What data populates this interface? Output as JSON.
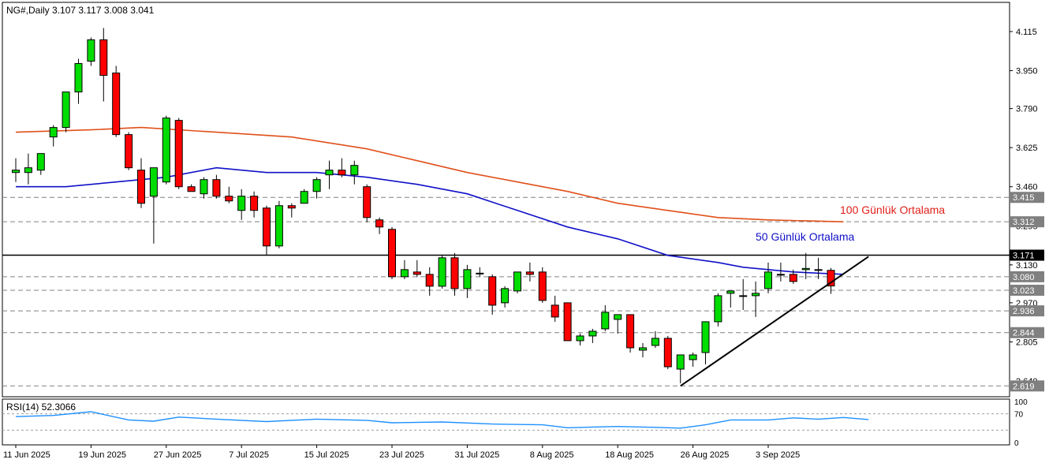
{
  "header": {
    "symbol_line": "NG#,Daily  3.107 3.117 3.008 3.041"
  },
  "rsi_header": "RSI(14) 52.3066",
  "annotations": {
    "ma100_label": "100 Günlük Ortalama",
    "ma50_label": "50 Günlük Ortalama"
  },
  "colors": {
    "background": "#ffffff",
    "bull": "#00dd00",
    "bear": "#ff0000",
    "ma50": "#1010c8",
    "ma100": "#e0501a",
    "rsi": "#1e90ff",
    "support_trend": "#000000",
    "dashed_levels": "#808080",
    "price_tag_bg": "#808080",
    "price_tag_text": "#ffffff"
  },
  "chart_data": {
    "type": "candlestick",
    "symbol": "NG#",
    "timeframe": "Daily",
    "current_ohlc": {
      "open": 3.107,
      "high": 3.117,
      "low": 3.008,
      "close": 3.041
    },
    "price_axis": {
      "range": [
        2.58,
        4.19
      ],
      "ticks": [
        "4.115",
        "3.950",
        "3.790",
        "3.625",
        "3.460",
        "3.295",
        "3.130",
        "2.970",
        "2.805",
        "2.640"
      ]
    },
    "date_labels": [
      "11 Jun 2025",
      "19 Jun 2025",
      "27 Jun 2025",
      "7 Jul 2025",
      "15 Jul 2025",
      "23 Jul 2025",
      "31 Jul 2025",
      "8 Aug 2025",
      "18 Aug 2025",
      "26 Aug 2025",
      "3 Sep 2025"
    ],
    "horizontal_levels": [
      {
        "price": 3.415,
        "label": "3.415",
        "style": "dashed"
      },
      {
        "price": 3.312,
        "label": "3.312",
        "style": "dashed"
      },
      {
        "price": 3.171,
        "label": "3.171",
        "style": "solid"
      },
      {
        "price": 3.08,
        "label": "3.080",
        "style": "dashed"
      },
      {
        "price": 3.023,
        "label": "3.023",
        "style": "dashed"
      },
      {
        "price": 2.936,
        "label": "2.936",
        "style": "dashed"
      },
      {
        "price": 2.844,
        "label": "2.844",
        "style": "dashed"
      },
      {
        "price": 2.619,
        "label": "2.619",
        "style": "dashed"
      }
    ],
    "trendline": {
      "from": {
        "bar": 53,
        "price": 2.619
      },
      "to": {
        "bar": 68,
        "price": 3.165
      }
    },
    "candles": [
      {
        "o": 3.52,
        "h": 3.58,
        "l": 3.48,
        "c": 3.53
      },
      {
        "o": 3.52,
        "h": 3.6,
        "l": 3.47,
        "c": 3.54
      },
      {
        "o": 3.53,
        "h": 3.6,
        "l": 3.51,
        "c": 3.6
      },
      {
        "o": 3.67,
        "h": 3.72,
        "l": 3.63,
        "c": 3.71
      },
      {
        "o": 3.71,
        "h": 3.86,
        "l": 3.69,
        "c": 3.86
      },
      {
        "o": 3.86,
        "h": 4.0,
        "l": 3.81,
        "c": 3.98
      },
      {
        "o": 3.99,
        "h": 4.09,
        "l": 3.97,
        "c": 4.08
      },
      {
        "o": 4.08,
        "h": 4.13,
        "l": 3.82,
        "c": 3.93
      },
      {
        "o": 3.94,
        "h": 3.97,
        "l": 3.67,
        "c": 3.68
      },
      {
        "o": 3.68,
        "h": 3.69,
        "l": 3.53,
        "c": 3.54
      },
      {
        "o": 3.53,
        "h": 3.58,
        "l": 3.37,
        "c": 3.39
      },
      {
        "o": 3.42,
        "h": 3.54,
        "l": 3.22,
        "c": 3.54
      },
      {
        "o": 3.48,
        "h": 3.76,
        "l": 3.47,
        "c": 3.75
      },
      {
        "o": 3.74,
        "h": 3.75,
        "l": 3.45,
        "c": 3.46
      },
      {
        "o": 3.46,
        "h": 3.47,
        "l": 3.44,
        "c": 3.44
      },
      {
        "o": 3.43,
        "h": 3.5,
        "l": 3.41,
        "c": 3.49
      },
      {
        "o": 3.49,
        "h": 3.51,
        "l": 3.41,
        "c": 3.42
      },
      {
        "o": 3.42,
        "h": 3.46,
        "l": 3.39,
        "c": 3.4
      },
      {
        "o": 3.36,
        "h": 3.45,
        "l": 3.32,
        "c": 3.42
      },
      {
        "o": 3.42,
        "h": 3.44,
        "l": 3.33,
        "c": 3.36
      },
      {
        "o": 3.37,
        "h": 3.38,
        "l": 3.17,
        "c": 3.21
      },
      {
        "o": 3.21,
        "h": 3.4,
        "l": 3.2,
        "c": 3.38
      },
      {
        "o": 3.38,
        "h": 3.39,
        "l": 3.33,
        "c": 3.37
      },
      {
        "o": 3.39,
        "h": 3.45,
        "l": 3.39,
        "c": 3.44
      },
      {
        "o": 3.44,
        "h": 3.5,
        "l": 3.41,
        "c": 3.49
      },
      {
        "o": 3.51,
        "h": 3.57,
        "l": 3.45,
        "c": 3.53
      },
      {
        "o": 3.53,
        "h": 3.58,
        "l": 3.5,
        "c": 3.51
      },
      {
        "o": 3.51,
        "h": 3.57,
        "l": 3.47,
        "c": 3.55
      },
      {
        "o": 3.46,
        "h": 3.47,
        "l": 3.31,
        "c": 3.33
      },
      {
        "o": 3.32,
        "h": 3.33,
        "l": 3.26,
        "c": 3.29
      },
      {
        "o": 3.28,
        "h": 3.29,
        "l": 3.07,
        "c": 3.08
      },
      {
        "o": 3.08,
        "h": 3.15,
        "l": 3.07,
        "c": 3.11
      },
      {
        "o": 3.1,
        "h": 3.15,
        "l": 3.08,
        "c": 3.09
      },
      {
        "o": 3.09,
        "h": 3.12,
        "l": 3.0,
        "c": 3.04
      },
      {
        "o": 3.04,
        "h": 3.17,
        "l": 3.03,
        "c": 3.16
      },
      {
        "o": 3.16,
        "h": 3.18,
        "l": 3.0,
        "c": 3.03
      },
      {
        "o": 3.03,
        "h": 3.13,
        "l": 2.99,
        "c": 3.11
      },
      {
        "o": 3.095,
        "h": 3.12,
        "l": 3.08,
        "c": 3.095
      },
      {
        "o": 3.08,
        "h": 3.09,
        "l": 2.92,
        "c": 2.96
      },
      {
        "o": 2.97,
        "h": 3.04,
        "l": 2.95,
        "c": 3.03
      },
      {
        "o": 3.02,
        "h": 3.1,
        "l": 3.01,
        "c": 3.1
      },
      {
        "o": 3.1,
        "h": 3.14,
        "l": 3.06,
        "c": 3.09
      },
      {
        "o": 3.1,
        "h": 3.12,
        "l": 2.97,
        "c": 2.98
      },
      {
        "o": 2.96,
        "h": 3.0,
        "l": 2.89,
        "c": 2.91
      },
      {
        "o": 2.97,
        "h": 2.97,
        "l": 2.81,
        "c": 2.81
      },
      {
        "o": 2.81,
        "h": 2.84,
        "l": 2.79,
        "c": 2.83
      },
      {
        "o": 2.83,
        "h": 2.86,
        "l": 2.8,
        "c": 2.85
      },
      {
        "o": 2.86,
        "h": 2.96,
        "l": 2.85,
        "c": 2.93
      },
      {
        "o": 2.9,
        "h": 2.92,
        "l": 2.84,
        "c": 2.92
      },
      {
        "o": 2.92,
        "h": 2.92,
        "l": 2.76,
        "c": 2.78
      },
      {
        "o": 2.77,
        "h": 2.8,
        "l": 2.74,
        "c": 2.78
      },
      {
        "o": 2.79,
        "h": 2.85,
        "l": 2.78,
        "c": 2.82
      },
      {
        "o": 2.82,
        "h": 2.83,
        "l": 2.69,
        "c": 2.7
      },
      {
        "o": 2.69,
        "h": 2.74,
        "l": 2.63,
        "c": 2.75
      },
      {
        "o": 2.73,
        "h": 2.76,
        "l": 2.7,
        "c": 2.75
      },
      {
        "o": 2.76,
        "h": 2.89,
        "l": 2.71,
        "c": 2.89
      },
      {
        "o": 2.89,
        "h": 3.01,
        "l": 2.87,
        "c": 3.0
      },
      {
        "o": 3.01,
        "h": 3.02,
        "l": 2.95,
        "c": 3.02
      },
      {
        "o": 3.0,
        "h": 3.07,
        "l": 2.94,
        "c": 3.0
      },
      {
        "o": 3.0,
        "h": 3.06,
        "l": 2.91,
        "c": 3.01
      },
      {
        "o": 3.03,
        "h": 3.14,
        "l": 3.01,
        "c": 3.1
      },
      {
        "o": 3.09,
        "h": 3.14,
        "l": 3.06,
        "c": 3.09
      },
      {
        "o": 3.09,
        "h": 3.11,
        "l": 3.05,
        "c": 3.06
      },
      {
        "o": 3.11,
        "h": 3.18,
        "l": 3.07,
        "c": 3.115
      },
      {
        "o": 3.11,
        "h": 3.16,
        "l": 3.07,
        "c": 3.11
      },
      {
        "o": 3.107,
        "h": 3.117,
        "l": 3.008,
        "c": 3.041
      }
    ],
    "ma50": [
      [
        0,
        3.46
      ],
      [
        4,
        3.46
      ],
      [
        8,
        3.48
      ],
      [
        12,
        3.5
      ],
      [
        16,
        3.54
      ],
      [
        20,
        3.52
      ],
      [
        24,
        3.52
      ],
      [
        28,
        3.5
      ],
      [
        32,
        3.47
      ],
      [
        36,
        3.43
      ],
      [
        40,
        3.36
      ],
      [
        44,
        3.29
      ],
      [
        48,
        3.24
      ],
      [
        52,
        3.17
      ],
      [
        56,
        3.14
      ],
      [
        58,
        3.12
      ],
      [
        60,
        3.11
      ],
      [
        62,
        3.1
      ],
      [
        66,
        3.09
      ]
    ],
    "ma100": [
      [
        0,
        3.69
      ],
      [
        6,
        3.7
      ],
      [
        10,
        3.71
      ],
      [
        16,
        3.69
      ],
      [
        22,
        3.67
      ],
      [
        28,
        3.62
      ],
      [
        32,
        3.57
      ],
      [
        36,
        3.52
      ],
      [
        40,
        3.48
      ],
      [
        44,
        3.44
      ],
      [
        48,
        3.39
      ],
      [
        52,
        3.36
      ],
      [
        56,
        3.33
      ],
      [
        60,
        3.32
      ],
      [
        66,
        3.312
      ]
    ],
    "rsi": {
      "period": 14,
      "value": 52.3066,
      "levels": [
        70,
        30
      ],
      "axis_ticks": [
        "100",
        "70",
        "0"
      ],
      "values": [
        [
          0,
          63
        ],
        [
          3,
          66
        ],
        [
          6,
          75
        ],
        [
          9,
          55
        ],
        [
          11,
          52
        ],
        [
          13,
          62
        ],
        [
          16,
          57
        ],
        [
          20,
          51
        ],
        [
          24,
          57
        ],
        [
          28,
          54
        ],
        [
          30,
          48
        ],
        [
          34,
          50
        ],
        [
          38,
          45
        ],
        [
          42,
          43
        ],
        [
          44,
          36
        ],
        [
          48,
          39
        ],
        [
          51,
          37
        ],
        [
          53,
          35
        ],
        [
          55,
          43
        ],
        [
          57,
          55
        ],
        [
          60,
          55
        ],
        [
          62,
          60
        ],
        [
          64,
          57
        ],
        [
          66,
          61
        ],
        [
          68,
          56
        ]
      ]
    }
  }
}
